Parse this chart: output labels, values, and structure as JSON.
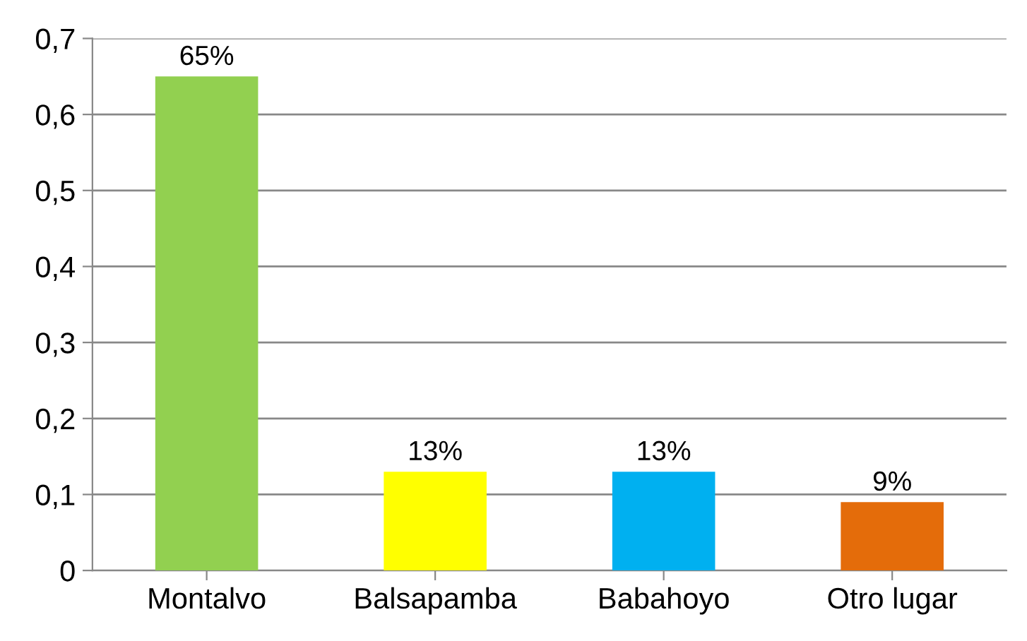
{
  "chart_data": {
    "type": "bar",
    "categories": [
      "Montalvo",
      "Balsapamba",
      "Babahoyo",
      "Otro lugar"
    ],
    "values": [
      0.65,
      0.13,
      0.13,
      0.09
    ],
    "colors": [
      "#92d050",
      "#ffff00",
      "#00b0f0",
      "#e46c0a"
    ],
    "value_labels": [
      "65%",
      "13%",
      "13%",
      "9%"
    ],
    "ylim": [
      0,
      0.7
    ],
    "yticks": [
      0,
      {
        "value": 0.1,
        "label": "0,1"
      },
      {
        "value": 0.2,
        "label": "0,2"
      },
      {
        "value": 0.3,
        "label": "0,3"
      },
      {
        "value": 0.4,
        "label": "0,4"
      },
      {
        "value": 0.5,
        "label": "0,5"
      },
      {
        "value": 0.6,
        "label": "0,6"
      },
      {
        "value": 0.7,
        "label": "0,7"
      }
    ],
    "grid": "y",
    "legend": false
  }
}
